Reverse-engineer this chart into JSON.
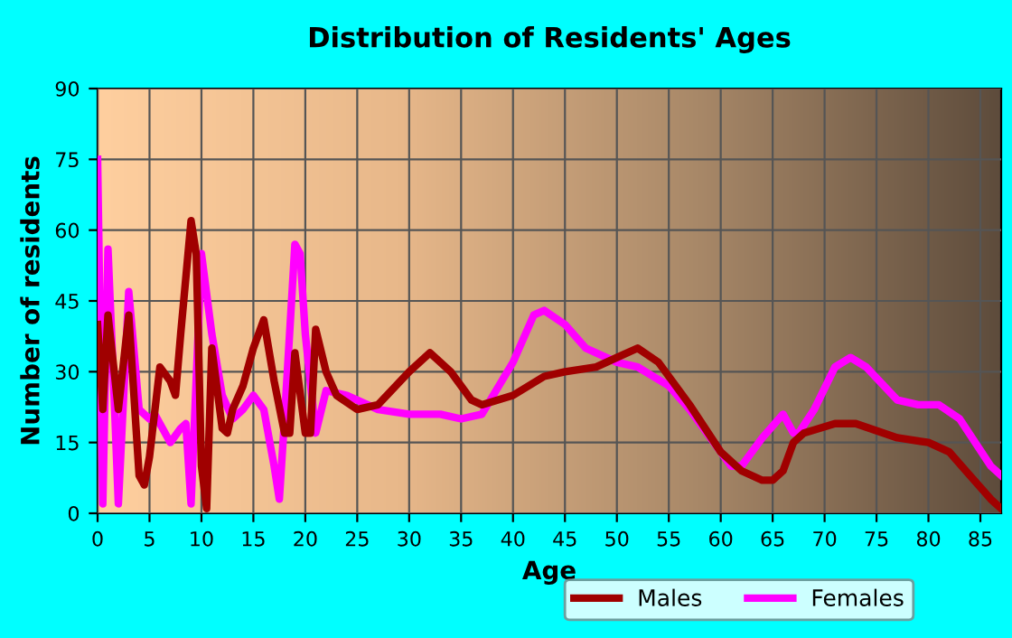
{
  "chart_data": {
    "type": "line",
    "title": "Distribution of Residents' Ages",
    "xlabel": "Age",
    "ylabel": "Number of residents",
    "xlim": [
      0,
      87
    ],
    "xticks": [
      0,
      5,
      10,
      15,
      20,
      25,
      30,
      35,
      40,
      45,
      50,
      55,
      60,
      65,
      70,
      75,
      80,
      85
    ],
    "ylim": [
      0,
      90
    ],
    "yticks": [
      0,
      15,
      30,
      45,
      60,
      75,
      90
    ],
    "grid": true,
    "legend": "bottom",
    "marker": "none",
    "line_style": "solid",
    "series": [
      {
        "name": "Males",
        "color": "#a00000",
        "x": [
          0,
          0.5,
          1,
          2,
          3,
          4,
          4.5,
          5,
          6,
          7,
          7.5,
          8,
          9,
          9.5,
          10,
          10.5,
          11,
          12,
          12.5,
          13,
          14,
          15,
          16,
          17,
          18,
          18.5,
          19,
          20,
          20.5,
          21,
          22,
          23,
          25,
          27,
          30,
          32,
          34,
          36,
          37,
          40,
          43,
          45,
          48,
          50,
          52,
          54,
          57,
          60,
          62,
          64,
          65,
          66,
          67,
          68,
          71,
          73,
          77,
          80,
          82,
          84,
          86,
          87
        ],
        "values": [
          40,
          22,
          42,
          22,
          42,
          8,
          6,
          12,
          31,
          28,
          25,
          38,
          62,
          55,
          10,
          1,
          35,
          18,
          17,
          22,
          27,
          35,
          41,
          28,
          17,
          17,
          34,
          17,
          17,
          39,
          30,
          25,
          22,
          23,
          30,
          34,
          30,
          24,
          23,
          25,
          29,
          30,
          31,
          33,
          35,
          32,
          23,
          13,
          9,
          7,
          7,
          9,
          15,
          17,
          19,
          19,
          16,
          15,
          13,
          8,
          3,
          1
        ]
      },
      {
        "name": "Females",
        "color": "#ff00ff",
        "x": [
          0,
          0.5,
          1,
          1.5,
          2,
          3,
          4,
          5,
          5.5,
          6,
          7,
          8,
          8.5,
          9,
          10,
          11,
          12,
          13,
          14,
          15,
          16,
          17,
          17.5,
          18,
          19,
          19.5,
          20,
          21,
          22,
          24,
          27,
          30,
          33,
          35,
          37,
          40,
          42,
          43,
          45,
          47,
          50,
          52,
          55,
          57,
          60,
          61,
          62,
          64,
          66,
          67,
          67.5,
          69,
          71,
          72.5,
          74,
          77,
          79,
          81,
          83,
          86,
          87
        ],
        "values": [
          75,
          2,
          56,
          30,
          2,
          47,
          22,
          20,
          21,
          19,
          15,
          18,
          19,
          2,
          55,
          38,
          25,
          20,
          22,
          25,
          22,
          10,
          3,
          20,
          57,
          55,
          38,
          17,
          26,
          25,
          22,
          21,
          21,
          20,
          21,
          32,
          42,
          43,
          40,
          35,
          32,
          31,
          27,
          22,
          13,
          10,
          10,
          16,
          21,
          17,
          17,
          22,
          31,
          33,
          31,
          24,
          23,
          23,
          20,
          10,
          8
        ]
      }
    ]
  }
}
